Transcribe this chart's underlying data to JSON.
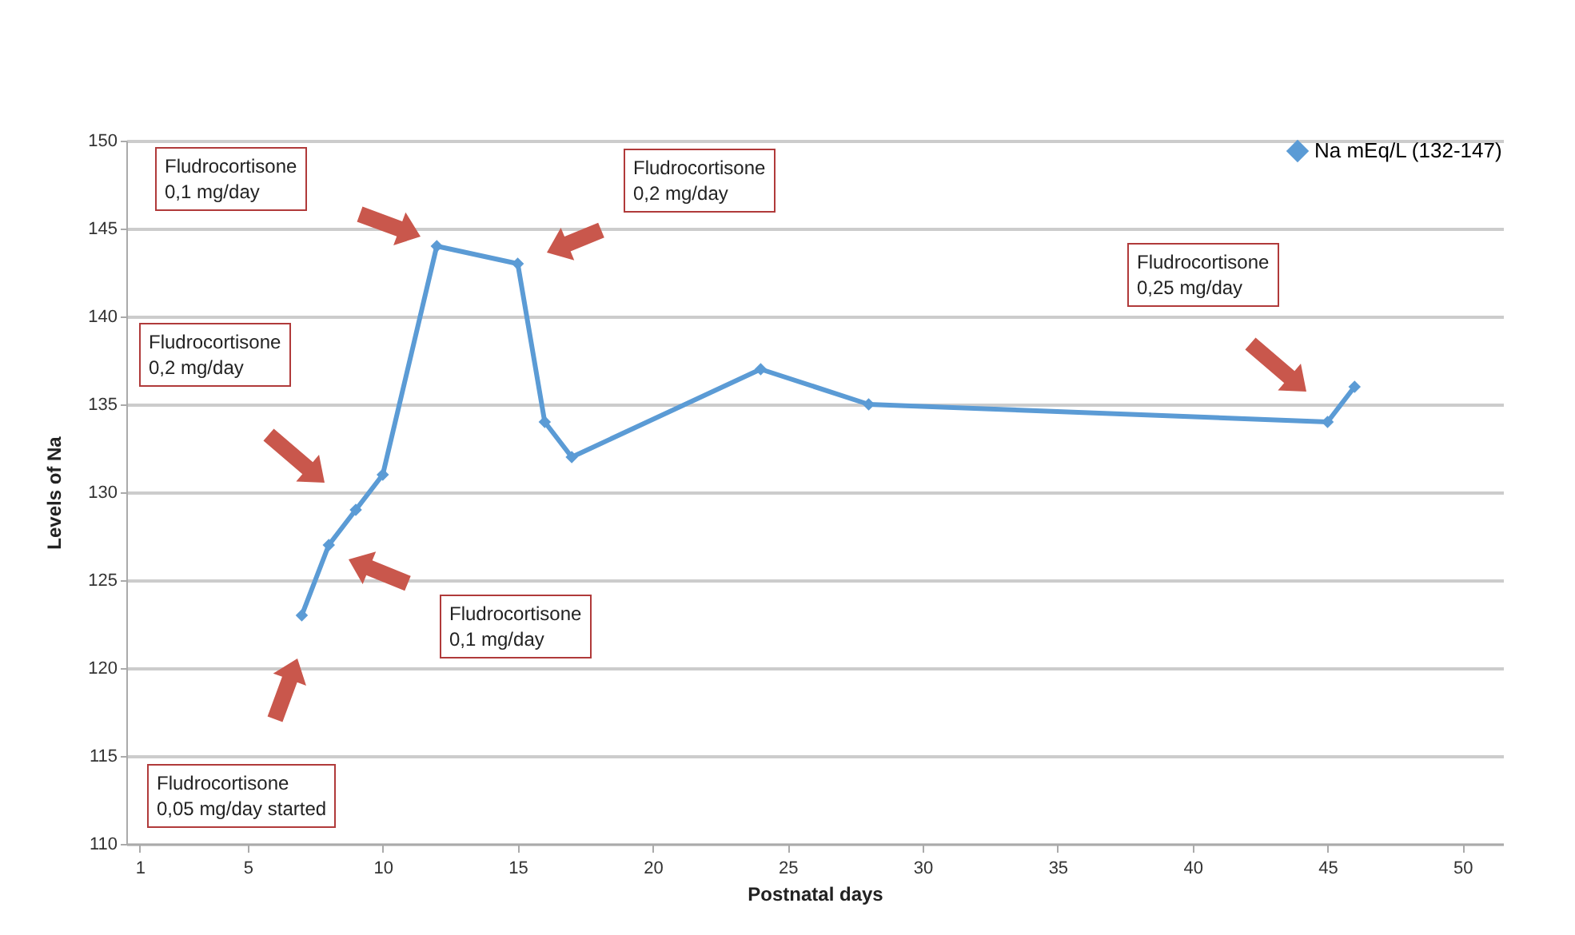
{
  "chart_data": {
    "type": "line",
    "xlabel": "Postnatal days",
    "ylabel": "Levels of Na",
    "x": [
      7,
      8,
      9,
      10,
      12,
      15,
      16,
      17,
      24,
      28,
      45,
      46
    ],
    "series": [
      {
        "name": "Na mEq/L (132-147)",
        "color": "#5b9bd5",
        "values": [
          123,
          127,
          129,
          131,
          144,
          143,
          134,
          132,
          137,
          135,
          134,
          136
        ]
      }
    ],
    "xlim": [
      0.5,
      51.5
    ],
    "xticks": [
      1,
      5,
      10,
      15,
      20,
      25,
      30,
      35,
      40,
      45,
      50
    ],
    "ylim": [
      110,
      150
    ],
    "yticks": [
      110,
      115,
      120,
      125,
      130,
      135,
      140,
      145,
      150
    ],
    "grid": "y",
    "legend": "top right",
    "marker": "diamond",
    "line_style": "solid",
    "annotations": [
      "Fludrocortisone\n0,05 mg/day started",
      "Fludrocortisone\n0,1 mg/day",
      "Fludrocortisone\n0,2 mg/day",
      "Fludrocortisone\n0,1 mg/day",
      "Fludrocortisone\n0,2 mg/day",
      "Fludrocortisone\n0,25 mg/day"
    ]
  }
}
